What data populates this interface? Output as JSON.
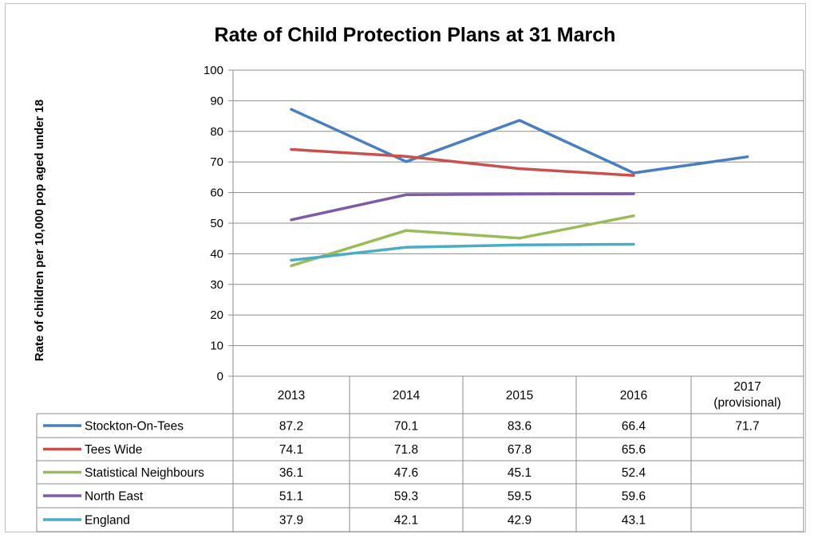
{
  "chart_data": {
    "type": "line",
    "title": "Rate of Child Protection Plans at 31 March",
    "ylabel": "Rate of children per 10,000 pop aged under 18",
    "xlabel": "",
    "ylim": [
      0,
      100
    ],
    "y_ticks": [
      "0",
      "10",
      "20",
      "30",
      "40",
      "50",
      "60",
      "70",
      "80",
      "90",
      "100"
    ],
    "grid": true,
    "legend": "data-table-left",
    "categories": [
      {
        "line1": "2013",
        "line2": ""
      },
      {
        "line1": "2014",
        "line2": ""
      },
      {
        "line1": "2015",
        "line2": ""
      },
      {
        "line1": "2016",
        "line2": ""
      },
      {
        "line1": "2017",
        "line2": "(provisional)"
      }
    ],
    "series": [
      {
        "name": "Stockton-On-Tees",
        "color": "#4a7ec2",
        "values": [
          87.2,
          70.1,
          83.6,
          66.4,
          71.7
        ],
        "labels": [
          "87.2",
          "70.1",
          "83.6",
          "66.4",
          "71.7"
        ]
      },
      {
        "name": "Tees Wide",
        "color": "#c9504d",
        "values": [
          74.1,
          71.8,
          67.8,
          65.6,
          null
        ],
        "labels": [
          "74.1",
          "71.8",
          "67.8",
          "65.6",
          ""
        ]
      },
      {
        "name": "Statistical Neighbours",
        "color": "#9bbb59",
        "values": [
          36.1,
          47.6,
          45.1,
          52.4,
          null
        ],
        "labels": [
          "36.1",
          "47.6",
          "45.1",
          "52.4",
          ""
        ]
      },
      {
        "name": "North East",
        "color": "#7f5aa6",
        "values": [
          51.1,
          59.3,
          59.5,
          59.6,
          null
        ],
        "labels": [
          "51.1",
          "59.3",
          "59.5",
          "59.6",
          ""
        ]
      },
      {
        "name": "England",
        "color": "#4bacc6",
        "values": [
          37.9,
          42.1,
          42.9,
          43.1,
          null
        ],
        "labels": [
          "37.9",
          "42.1",
          "42.9",
          "43.1",
          ""
        ]
      }
    ]
  }
}
